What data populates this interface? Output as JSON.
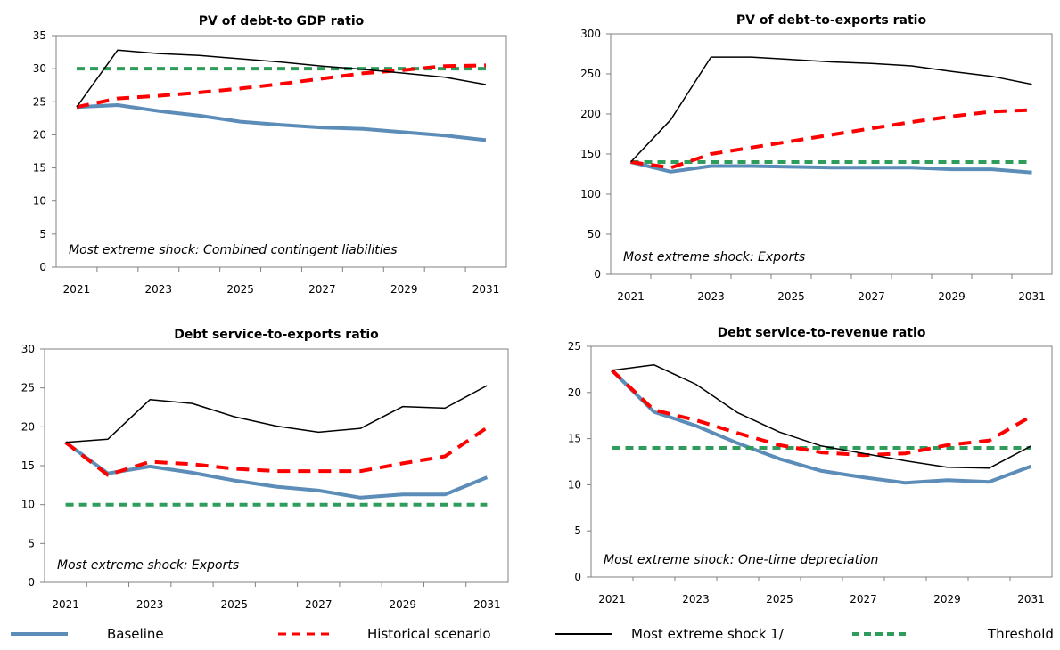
{
  "chart_data": [
    {
      "type": "line",
      "title": "PV of debt-to GDP ratio",
      "annotation": "Most extreme shock: Combined contingent liabilities",
      "x": [
        "2021",
        "2022",
        "2023",
        "2024",
        "2025",
        "2026",
        "2027",
        "2028",
        "2029",
        "2030",
        "2031"
      ],
      "x_tick_labels": [
        "2021",
        "2023",
        "2025",
        "2027",
        "2029",
        "2031"
      ],
      "ylim": [
        0,
        35
      ],
      "y_ticks": [
        0,
        5,
        10,
        15,
        20,
        25,
        30,
        35
      ],
      "grid": false,
      "series": [
        {
          "key": "baseline",
          "values": [
            24.2,
            24.5,
            23.6,
            22.9,
            22.0,
            21.5,
            21.1,
            20.9,
            20.4,
            19.9,
            19.2
          ]
        },
        {
          "key": "historical",
          "values": [
            24.2,
            25.5,
            25.9,
            26.4,
            27.0,
            27.7,
            28.5,
            29.3,
            29.8,
            30.4,
            30.5
          ]
        },
        {
          "key": "shock",
          "values": [
            24.2,
            32.8,
            32.3,
            32.0,
            31.5,
            31.0,
            30.4,
            29.9,
            29.3,
            28.7,
            27.6
          ]
        },
        {
          "key": "threshold",
          "values": [
            30,
            30,
            30,
            30,
            30,
            30,
            30,
            30,
            30,
            30,
            30
          ]
        }
      ]
    },
    {
      "type": "line",
      "title": "PV of debt-to-exports  ratio",
      "annotation": "Most extreme shock: Exports",
      "x": [
        "2021",
        "2022",
        "2023",
        "2024",
        "2025",
        "2026",
        "2027",
        "2028",
        "2029",
        "2030",
        "2031"
      ],
      "x_tick_labels": [
        "2021",
        "2023",
        "2025",
        "2027",
        "2029",
        "2031"
      ],
      "ylim": [
        0,
        300
      ],
      "y_ticks": [
        0,
        50,
        100,
        150,
        200,
        250,
        300
      ],
      "grid": false,
      "series": [
        {
          "key": "baseline",
          "values": [
            140,
            128,
            135,
            135,
            134,
            133,
            133,
            133,
            131,
            131,
            127
          ]
        },
        {
          "key": "historical",
          "values": [
            140,
            133,
            150,
            158,
            166,
            174,
            182,
            190,
            197,
            203,
            205
          ]
        },
        {
          "key": "shock",
          "values": [
            140,
            193,
            271,
            271,
            268,
            265,
            263,
            260,
            253,
            247,
            237
          ]
        },
        {
          "key": "threshold",
          "values": [
            140,
            140,
            140,
            140,
            140,
            140,
            140,
            140,
            140,
            140,
            140
          ]
        }
      ]
    },
    {
      "type": "line",
      "title": "Debt service-to-exports  ratio",
      "annotation": "Most extreme shock: Exports",
      "x": [
        "2021",
        "2022",
        "2023",
        "2024",
        "2025",
        "2026",
        "2027",
        "2028",
        "2029",
        "2030",
        "2031"
      ],
      "x_tick_labels": [
        "2021",
        "2023",
        "2025",
        "2027",
        "2029",
        "2031"
      ],
      "ylim": [
        0,
        30
      ],
      "y_ticks": [
        0,
        5,
        10,
        15,
        20,
        25,
        30
      ],
      "grid": false,
      "series": [
        {
          "key": "baseline",
          "values": [
            18.0,
            14.0,
            14.9,
            14.1,
            13.1,
            12.3,
            11.8,
            10.9,
            11.3,
            11.3,
            13.5
          ]
        },
        {
          "key": "historical",
          "values": [
            18.0,
            13.8,
            15.5,
            15.2,
            14.6,
            14.3,
            14.3,
            14.3,
            15.3,
            16.2,
            19.9
          ]
        },
        {
          "key": "shock",
          "values": [
            18.0,
            18.4,
            23.5,
            23.0,
            21.3,
            20.1,
            19.3,
            19.8,
            22.6,
            22.4,
            25.3
          ]
        },
        {
          "key": "threshold",
          "values": [
            10,
            10,
            10,
            10,
            10,
            10,
            10,
            10,
            10,
            10,
            10
          ]
        }
      ]
    },
    {
      "type": "line",
      "title": "Debt service-to-revenue  ratio",
      "annotation": "Most extreme shock: One-time  depreciation",
      "x": [
        "2021",
        "2022",
        "2023",
        "2024",
        "2025",
        "2026",
        "2027",
        "2028",
        "2029",
        "2030",
        "2031"
      ],
      "x_tick_labels": [
        "2021",
        "2023",
        "2025",
        "2027",
        "2029",
        "2031"
      ],
      "ylim": [
        0,
        25
      ],
      "y_ticks": [
        0,
        5,
        10,
        15,
        20,
        25
      ],
      "grid": false,
      "series": [
        {
          "key": "baseline",
          "values": [
            22.4,
            17.9,
            16.4,
            14.5,
            12.8,
            11.5,
            10.8,
            10.2,
            10.5,
            10.3,
            12.0
          ]
        },
        {
          "key": "historical",
          "values": [
            22.4,
            18.1,
            17.0,
            15.6,
            14.3,
            13.5,
            13.2,
            13.4,
            14.3,
            14.8,
            17.4
          ]
        },
        {
          "key": "shock",
          "values": [
            22.4,
            23.0,
            20.9,
            17.8,
            15.7,
            14.2,
            13.4,
            12.6,
            11.9,
            11.8,
            14.2
          ]
        },
        {
          "key": "threshold",
          "values": [
            14,
            14,
            14,
            14,
            14,
            14,
            14,
            14,
            14,
            14,
            14
          ]
        }
      ]
    }
  ],
  "legend": [
    {
      "key": "baseline",
      "label": "Baseline"
    },
    {
      "key": "historical",
      "label": "Historical scenario"
    },
    {
      "key": "shock",
      "label": "Most extreme shock 1/"
    },
    {
      "key": "threshold",
      "label": "Threshold"
    }
  ],
  "colors": {
    "baseline": "#5b8db8",
    "historical": "#ff0000",
    "shock": "#000000",
    "threshold": "#2e9c5a",
    "axis": "#808080"
  }
}
